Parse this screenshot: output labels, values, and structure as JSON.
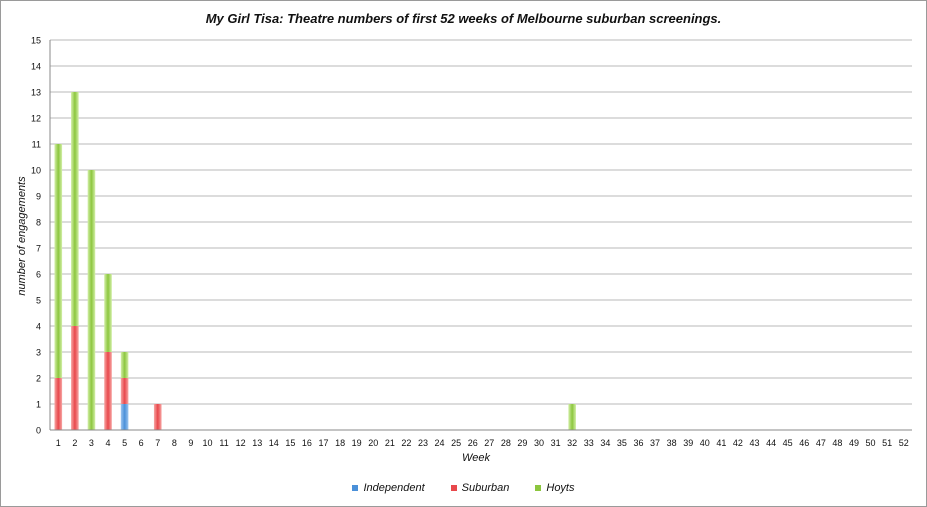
{
  "chart_data": {
    "type": "bar",
    "stacked": true,
    "title": "My Girl Tisa: Theatre numbers of first 52 weeks of Melbourne suburban screenings.",
    "xlabel": "Week",
    "ylabel": "number of engagements",
    "ylim": [
      0,
      15
    ],
    "yticks": [
      0,
      1,
      2,
      3,
      4,
      5,
      6,
      7,
      8,
      9,
      10,
      11,
      12,
      13,
      14,
      15
    ],
    "grid": true,
    "legend_position": "bottom",
    "categories": [
      "1",
      "2",
      "3",
      "4",
      "5",
      "6",
      "7",
      "8",
      "9",
      "10",
      "11",
      "12",
      "13",
      "14",
      "15",
      "16",
      "17",
      "18",
      "19",
      "20",
      "21",
      "22",
      "23",
      "24",
      "25",
      "26",
      "27",
      "28",
      "29",
      "30",
      "31",
      "32",
      "33",
      "34",
      "35",
      "36",
      "37",
      "38",
      "39",
      "40",
      "41",
      "42",
      "43",
      "44",
      "45",
      "46",
      "47",
      "48",
      "49",
      "50",
      "51",
      "52"
    ],
    "series": [
      {
        "name": "Independent",
        "color": "#4a90d9",
        "values": [
          0,
          0,
          0,
          0,
          1,
          0,
          0,
          0,
          0,
          0,
          0,
          0,
          0,
          0,
          0,
          0,
          0,
          0,
          0,
          0,
          0,
          0,
          0,
          0,
          0,
          0,
          0,
          0,
          0,
          0,
          0,
          0,
          0,
          0,
          0,
          0,
          0,
          0,
          0,
          0,
          0,
          0,
          0,
          0,
          0,
          0,
          0,
          0,
          0,
          0,
          0,
          0
        ]
      },
      {
        "name": "Suburban",
        "color": "#e8484c",
        "values": [
          2,
          4,
          0,
          3,
          1,
          0,
          1,
          0,
          0,
          0,
          0,
          0,
          0,
          0,
          0,
          0,
          0,
          0,
          0,
          0,
          0,
          0,
          0,
          0,
          0,
          0,
          0,
          0,
          0,
          0,
          0,
          0,
          0,
          0,
          0,
          0,
          0,
          0,
          0,
          0,
          0,
          0,
          0,
          0,
          0,
          0,
          0,
          0,
          0,
          0,
          0,
          0
        ]
      },
      {
        "name": "Hoyts",
        "color": "#8cc63e",
        "values": [
          9,
          9,
          10,
          3,
          1,
          0,
          0,
          0,
          0,
          0,
          0,
          0,
          0,
          0,
          0,
          0,
          0,
          0,
          0,
          0,
          0,
          0,
          0,
          0,
          0,
          0,
          0,
          0,
          0,
          0,
          0,
          1,
          0,
          0,
          0,
          0,
          0,
          0,
          0,
          0,
          0,
          0,
          0,
          0,
          0,
          0,
          0,
          0,
          0,
          0,
          0,
          0
        ]
      }
    ]
  }
}
